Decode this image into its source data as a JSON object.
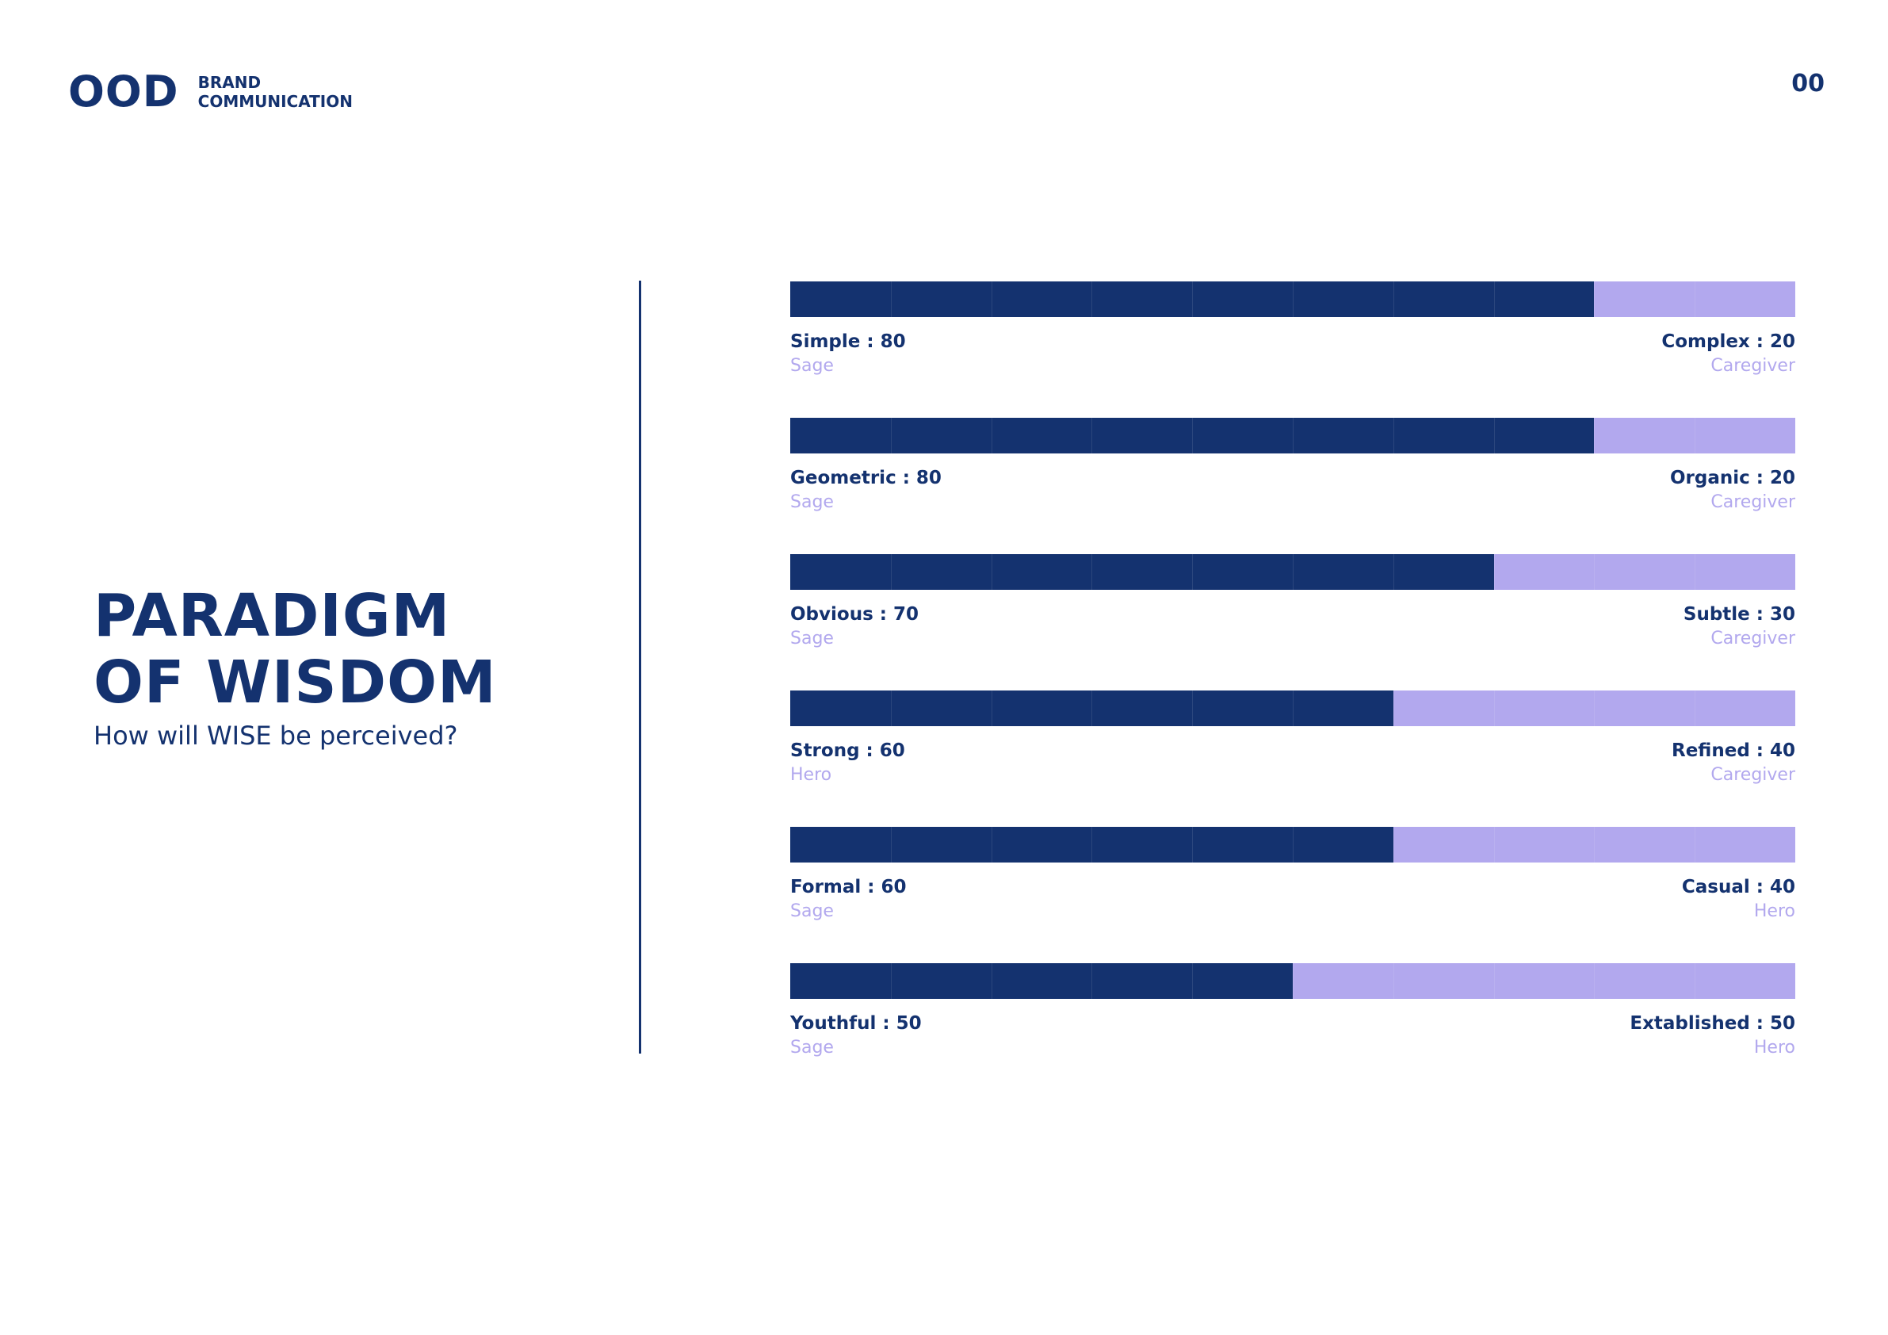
{
  "header": {
    "logo_mark": "OOD",
    "logo_line1": "BRAND",
    "logo_line2": "COMMUNICATION",
    "page_number": "00"
  },
  "title": {
    "line1": "PARADIGM",
    "line2": "OF WISDOM",
    "subtitle": "How will WISE be perceived?"
  },
  "colors": {
    "primary": "#14326f",
    "secondary": "#b2a8ee",
    "background": "#ffffff"
  },
  "chart_data": {
    "type": "bar",
    "stacked": true,
    "orientation": "horizontal",
    "scale": [
      0,
      100
    ],
    "segments_per_bar": 10,
    "rows": [
      {
        "left_label": "Simple : 80",
        "left_value": 80,
        "left_archetype": "Sage",
        "right_label": "Complex : 20",
        "right_value": 20,
        "right_archetype": "Caregiver"
      },
      {
        "left_label": "Geometric : 80",
        "left_value": 80,
        "left_archetype": "Sage",
        "right_label": "Organic : 20",
        "right_value": 20,
        "right_archetype": "Caregiver"
      },
      {
        "left_label": "Obvious : 70",
        "left_value": 70,
        "left_archetype": "Sage",
        "right_label": "Subtle : 30",
        "right_value": 30,
        "right_archetype": "Caregiver"
      },
      {
        "left_label": "Strong : 60",
        "left_value": 60,
        "left_archetype": "Hero",
        "right_label": "Refined : 40",
        "right_value": 40,
        "right_archetype": "Caregiver"
      },
      {
        "left_label": "Formal : 60",
        "left_value": 60,
        "left_archetype": "Sage",
        "right_label": "Casual : 40",
        "right_value": 40,
        "right_archetype": "Hero"
      },
      {
        "left_label": "Youthful : 50",
        "left_value": 50,
        "left_archetype": "Sage",
        "right_label": "Extablished : 50",
        "right_value": 50,
        "right_archetype": "Hero"
      }
    ]
  }
}
